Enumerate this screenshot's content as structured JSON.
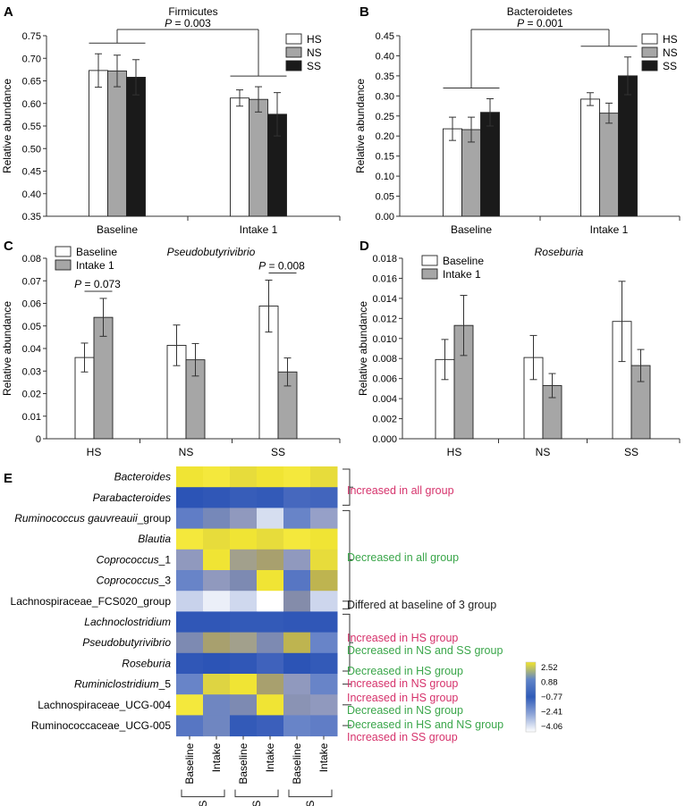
{
  "colors": {
    "hs": "#ffffff",
    "ns": "#a6a6a6",
    "ss": "#1a1a1a",
    "baseline": "#ffffff",
    "intake": "#a6a6a6",
    "axis": "#333333",
    "pink": "#d6336c",
    "green": "#3aa64a",
    "black": "#222222"
  },
  "chart_data": [
    {
      "panel": "A",
      "type": "bar",
      "title": "Firmicutes",
      "ylabel": "Relative abundance",
      "xlabel": "",
      "ylim": [
        0.35,
        0.75
      ],
      "yticks": [
        "0.35",
        "0.40",
        "0.45",
        "0.50",
        "0.55",
        "0.60",
        "0.65",
        "0.70",
        "0.75"
      ],
      "ytick_values": [
        0.35,
        0.4,
        0.45,
        0.5,
        0.55,
        0.6,
        0.65,
        0.7,
        0.75
      ],
      "categories": [
        "Baseline",
        "Intake 1"
      ],
      "series": [
        {
          "name": "HS",
          "color_key": "hs",
          "values": [
            0.673,
            0.612
          ],
          "errors": [
            0.037,
            0.018
          ]
        },
        {
          "name": "NS",
          "color_key": "ns",
          "values": [
            0.672,
            0.609
          ],
          "errors": [
            0.035,
            0.028
          ]
        },
        {
          "name": "SS",
          "color_key": "ss",
          "values": [
            0.658,
            0.576
          ],
          "errors": [
            0.039,
            0.048
          ]
        }
      ],
      "legend": "top-right",
      "annotation": {
        "text": "P = 0.003",
        "p_label": "P",
        "p_value": "= 0.003",
        "from_category": 0,
        "to_category": 1
      }
    },
    {
      "panel": "B",
      "type": "bar",
      "title": "Bacteroidetes",
      "ylabel": "Relative abundance",
      "xlabel": "",
      "ylim": [
        0.0,
        0.45
      ],
      "yticks": [
        "0.00",
        "0.05",
        "0.10",
        "0.15",
        "0.20",
        "0.25",
        "0.30",
        "0.35",
        "0.40",
        "0.45"
      ],
      "ytick_values": [
        0,
        0.05,
        0.1,
        0.15,
        0.2,
        0.25,
        0.3,
        0.35,
        0.4,
        0.45
      ],
      "categories": [
        "Baseline",
        "Intake 1"
      ],
      "series": [
        {
          "name": "HS",
          "color_key": "hs",
          "values": [
            0.218,
            0.292
          ],
          "errors": [
            0.029,
            0.016
          ]
        },
        {
          "name": "NS",
          "color_key": "ns",
          "values": [
            0.216,
            0.257
          ],
          "errors": [
            0.031,
            0.025
          ]
        },
        {
          "name": "SS",
          "color_key": "ss",
          "values": [
            0.259,
            0.35
          ],
          "errors": [
            0.034,
            0.047
          ]
        }
      ],
      "legend": "top-right",
      "annotation": {
        "text": "P = 0.001",
        "p_label": "P",
        "p_value": "= 0.001",
        "from_category": 0,
        "to_category": 1
      }
    },
    {
      "panel": "C",
      "type": "bar",
      "title": "Pseudobutyrivibrio",
      "ylabel": "Relative abundance",
      "xlabel": "",
      "ylim": [
        0,
        0.08
      ],
      "yticks": [
        "0",
        "0.01",
        "0.02",
        "0.03",
        "0.04",
        "0.05",
        "0.06",
        "0.07",
        "0.08"
      ],
      "ytick_values": [
        0,
        0.01,
        0.02,
        0.03,
        0.04,
        0.05,
        0.06,
        0.07,
        0.08
      ],
      "categories": [
        "HS",
        "NS",
        "SS"
      ],
      "series": [
        {
          "name": "Baseline",
          "color_key": "baseline",
          "values": [
            0.036,
            0.0414,
            0.0588
          ],
          "errors": [
            0.0064,
            0.009,
            0.0115
          ]
        },
        {
          "name": "Intake 1",
          "color_key": "intake",
          "values": [
            0.0538,
            0.035,
            0.0296
          ],
          "errors": [
            0.0084,
            0.0072,
            0.0062
          ]
        }
      ],
      "legend": "top-left",
      "annotations": [
        {
          "text": "P = 0.073",
          "p_label": "P",
          "p_value": "= 0.073",
          "category": 0
        },
        {
          "text": "P = 0.008",
          "p_label": "P",
          "p_value": "= 0.008",
          "category": 2
        }
      ]
    },
    {
      "panel": "D",
      "type": "bar",
      "title": "Roseburia",
      "ylabel": "Relative abundance",
      "xlabel": "",
      "ylim": [
        0,
        0.018
      ],
      "yticks": [
        "0.000",
        "0.002",
        "0.004",
        "0.006",
        "0.008",
        "0.010",
        "0.012",
        "0.014",
        "0.016",
        "0.018"
      ],
      "ytick_values": [
        0,
        0.002,
        0.004,
        0.006,
        0.008,
        0.01,
        0.012,
        0.014,
        0.016,
        0.018
      ],
      "categories": [
        "HS",
        "NS",
        "SS"
      ],
      "series": [
        {
          "name": "Baseline",
          "color_key": "baseline",
          "values": [
            0.0079,
            0.0081,
            0.0117
          ],
          "errors": [
            0.002,
            0.0022,
            0.004
          ]
        },
        {
          "name": "Intake 1",
          "color_key": "intake",
          "values": [
            0.0113,
            0.0053,
            0.0073
          ],
          "errors": [
            0.003,
            0.0012,
            0.0016
          ]
        }
      ],
      "legend": "top-left"
    },
    {
      "panel": "E",
      "type": "heatmap",
      "rows": [
        {
          "name": "Bacteroides",
          "italic": true,
          "values": [
            2.4,
            2.5,
            2.3,
            2.4,
            2.5,
            2.3
          ]
        },
        {
          "name": "Parabacteroides",
          "italic": true,
          "values": [
            -0.5,
            -0.4,
            -0.2,
            -0.3,
            0.2,
            0.1
          ]
        },
        {
          "name": "Ruminococcus gauvreauii_group",
          "italic_part": "Ruminococcus gauvreauii",
          "plain_part": "_group",
          "values": [
            0.5,
            0.8,
            1.2,
            3.2,
            0.6,
            1.3
          ]
        },
        {
          "name": "Blautia",
          "italic": true,
          "values": [
            2.5,
            2.3,
            2.4,
            2.3,
            2.5,
            2.4
          ]
        },
        {
          "name": "Coprococcus_1",
          "italic_part": "Coprococcus",
          "plain_part": "_1",
          "values": [
            1.2,
            2.4,
            1.5,
            1.6,
            1.2,
            2.3
          ]
        },
        {
          "name": "Coprococcus_3",
          "italic_part": "Coprococcus",
          "plain_part": "_3",
          "values": [
            0.6,
            1.2,
            0.9,
            2.4,
            0.4,
            1.9
          ]
        },
        {
          "name": "Lachnospiraceae_FCS020_group",
          "italic": false,
          "values": [
            2.6,
            3.6,
            2.9,
            4.0,
            1.0,
            2.8
          ]
        },
        {
          "name": "Lachnoclostridium",
          "italic": true,
          "values": [
            -0.4,
            -0.4,
            -0.3,
            -0.3,
            -0.4,
            -0.4
          ]
        },
        {
          "name": "Pseudobutyrivibrio",
          "italic": true,
          "values": [
            0.9,
            1.6,
            1.5,
            0.9,
            1.9,
            0.6
          ]
        },
        {
          "name": "Roseburia",
          "italic": true,
          "values": [
            -0.4,
            -0.5,
            -0.4,
            0.0,
            -0.5,
            -0.3
          ]
        },
        {
          "name": "Ruminiclostridium_5",
          "italic_part": "Ruminiclostridium",
          "plain_part": "_5",
          "values": [
            0.6,
            2.2,
            2.4,
            1.6,
            1.2,
            0.6
          ]
        },
        {
          "name": "Lachnospiraceae_UCG-004",
          "italic": false,
          "values": [
            2.5,
            0.7,
            0.9,
            2.4,
            1.1,
            1.2
          ]
        },
        {
          "name": "Ruminococcaceae_UCG-005",
          "italic": false,
          "values": [
            0.4,
            0.7,
            -0.3,
            -0.1,
            0.6,
            0.5
          ]
        }
      ],
      "columns": [
        "Baseline",
        "Intake",
        "Baseline",
        "Intake",
        "Baseline",
        "Intake"
      ],
      "column_groups": [
        "HS",
        "NS",
        "SS"
      ],
      "colorbar": {
        "ticks": [
          "2.52",
          "0.88",
          "−0.77",
          "−2.41",
          "−4.06"
        ]
      },
      "annotations": [
        {
          "lines": [
            {
              "text": "Increased in all group",
              "color_key": "pink"
            }
          ],
          "rows": [
            0,
            1
          ]
        },
        {
          "lines": [
            {
              "text": "Decreased in all group",
              "color_key": "green"
            }
          ],
          "rows": [
            2,
            6
          ]
        },
        {
          "lines": [
            {
              "text": "Differed at baseline of 3 group",
              "color_key": "black"
            }
          ],
          "rows": [
            6,
            6
          ]
        },
        {
          "lines": [
            {
              "text": "Increased in HS group",
              "color_key": "pink"
            },
            {
              "text": "Decreased in NS and SS group",
              "color_key": "green"
            }
          ],
          "rows": [
            7,
            9
          ]
        },
        {
          "lines": [
            {
              "text": "Decreased in HS group",
              "color_key": "green"
            },
            {
              "text": "Increased in NS group",
              "color_key": "pink"
            }
          ],
          "rows": [
            10,
            10
          ]
        },
        {
          "lines": [
            {
              "text": "Increased in HS group",
              "color_key": "pink"
            },
            {
              "text": "Decreased in NS group",
              "color_key": "green"
            }
          ],
          "rows": [
            11,
            11
          ]
        },
        {
          "lines": [
            {
              "text": "Decreased in HS and NS group",
              "color_key": "green"
            },
            {
              "text": "Increased in SS group",
              "color_key": "pink"
            }
          ],
          "rows": [
            12,
            12
          ]
        }
      ]
    }
  ]
}
